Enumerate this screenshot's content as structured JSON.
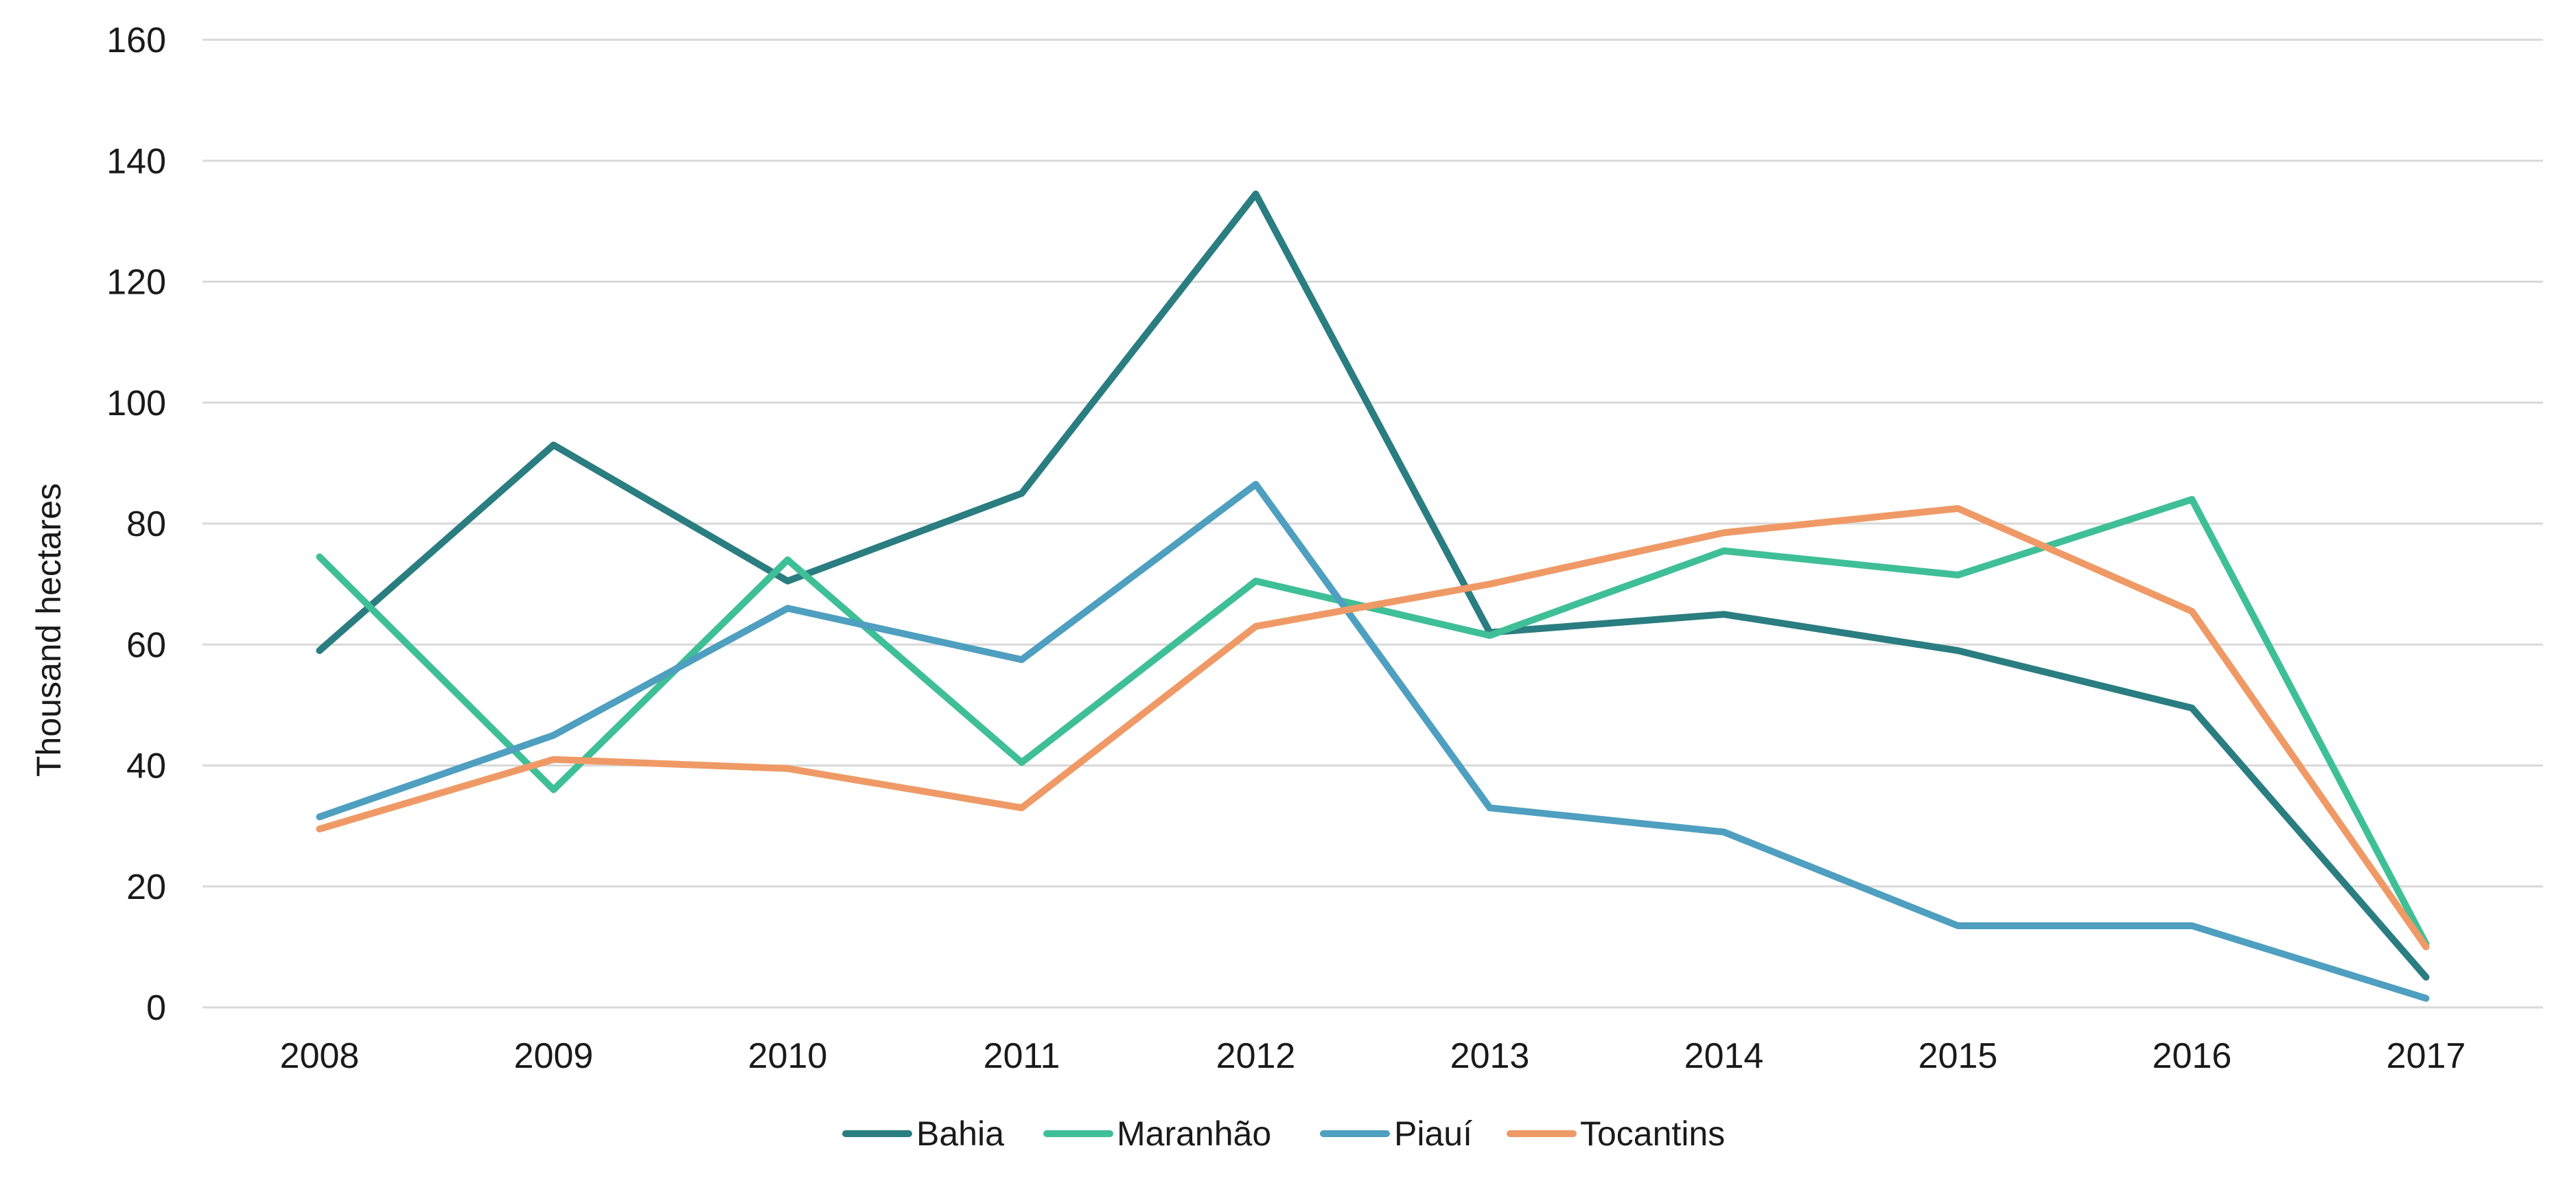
{
  "chart_data": {
    "type": "line",
    "title": "",
    "xlabel": "",
    "ylabel": "Thousand hectares",
    "categories": [
      "2008",
      "2009",
      "2010",
      "2011",
      "2012",
      "2013",
      "2014",
      "2015",
      "2016",
      "2017"
    ],
    "ylim": [
      0,
      160
    ],
    "yticks": [
      "0",
      "20",
      "40",
      "60",
      "80",
      "100",
      "120",
      "140",
      "160"
    ],
    "grid": true,
    "legend_position": "bottom",
    "series": [
      {
        "name": "Bahia",
        "color": "#2a7d80",
        "values": [
          59,
          93,
          70.5,
          85,
          134.5,
          62,
          65,
          59,
          49.5,
          5
        ]
      },
      {
        "name": "Maranhão",
        "color": "#3fbf95",
        "values": [
          74.5,
          36,
          74,
          40.5,
          70.5,
          61.5,
          75.5,
          71.5,
          84,
          10.5
        ]
      },
      {
        "name": "Piauí",
        "color": "#4e9fc0",
        "values": [
          31.5,
          45,
          66,
          57.5,
          86.5,
          33,
          29,
          13.5,
          13.5,
          1.5
        ]
      },
      {
        "name": "Tocantins",
        "color": "#ef9a66",
        "values": [
          29.5,
          41,
          39.5,
          33,
          63,
          70,
          78.5,
          82.5,
          65.5,
          10
        ]
      }
    ]
  }
}
